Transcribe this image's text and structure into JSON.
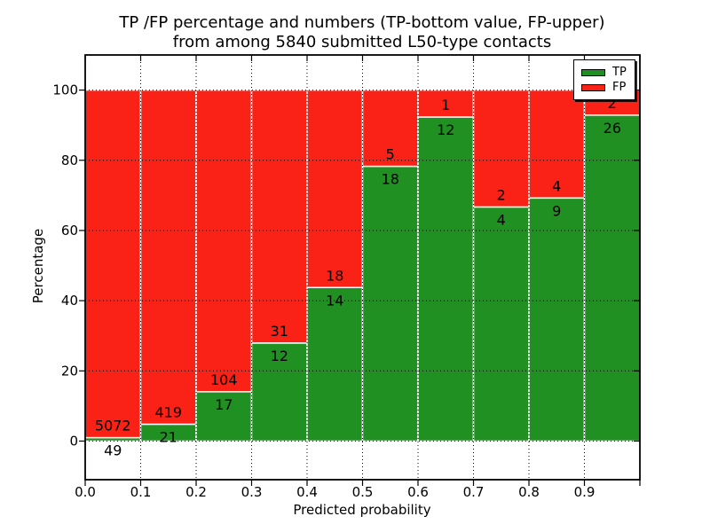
{
  "figure": {
    "background_color": "#ffffff",
    "text_color": "#000000"
  },
  "chart_data": {
    "type": "bar",
    "stacked": true,
    "title_line1": "TP /FP percentage and numbers (TP-bottom value, FP-upper)",
    "title_line2": "from among 5840 submitted L50-type contacts",
    "xlabel": "Predicted probability",
    "ylabel": "Percentage",
    "total_contacts": 5840,
    "xlim": [
      0.0,
      1.0
    ],
    "ylim": [
      -11,
      110
    ],
    "x_tick_labels": [
      "0.0",
      "0.1",
      "0.2",
      "0.3",
      "0.4",
      "0.5",
      "0.6",
      "0.7",
      "0.8",
      "0.9"
    ],
    "y_ticks": [
      0,
      20,
      40,
      60,
      80,
      100
    ],
    "grid": "dotted",
    "grid_color": "#000000",
    "bar_edge_color": "#ffffff",
    "legend_position": "upper right",
    "series": [
      {
        "name": "TP",
        "color": "#1f9021"
      },
      {
        "name": "FP",
        "color": "#fa2116"
      }
    ],
    "bins": [
      {
        "range": "0.0-0.1",
        "tp": 49,
        "fp": 5072,
        "tp_pct": 0.96,
        "fp_pct": 99.04
      },
      {
        "range": "0.1-0.2",
        "tp": 21,
        "fp": 419,
        "tp_pct": 4.77,
        "fp_pct": 95.23
      },
      {
        "range": "0.2-0.3",
        "tp": 17,
        "fp": 104,
        "tp_pct": 14.05,
        "fp_pct": 85.95
      },
      {
        "range": "0.3-0.4",
        "tp": 12,
        "fp": 31,
        "tp_pct": 27.91,
        "fp_pct": 72.09
      },
      {
        "range": "0.4-0.5",
        "tp": 14,
        "fp": 18,
        "tp_pct": 43.75,
        "fp_pct": 56.25
      },
      {
        "range": "0.5-0.6",
        "tp": 18,
        "fp": 5,
        "tp_pct": 78.26,
        "fp_pct": 21.74
      },
      {
        "range": "0.6-0.7",
        "tp": 12,
        "fp": 1,
        "tp_pct": 92.31,
        "fp_pct": 7.69
      },
      {
        "range": "0.7-0.8",
        "tp": 4,
        "fp": 2,
        "tp_pct": 66.67,
        "fp_pct": 33.33
      },
      {
        "range": "0.8-0.9",
        "tp": 9,
        "fp": 4,
        "tp_pct": 69.23,
        "fp_pct": 30.77
      },
      {
        "range": "0.9-1.0",
        "tp": 26,
        "fp": 2,
        "tp_pct": 92.86,
        "fp_pct": 7.14
      }
    ]
  }
}
